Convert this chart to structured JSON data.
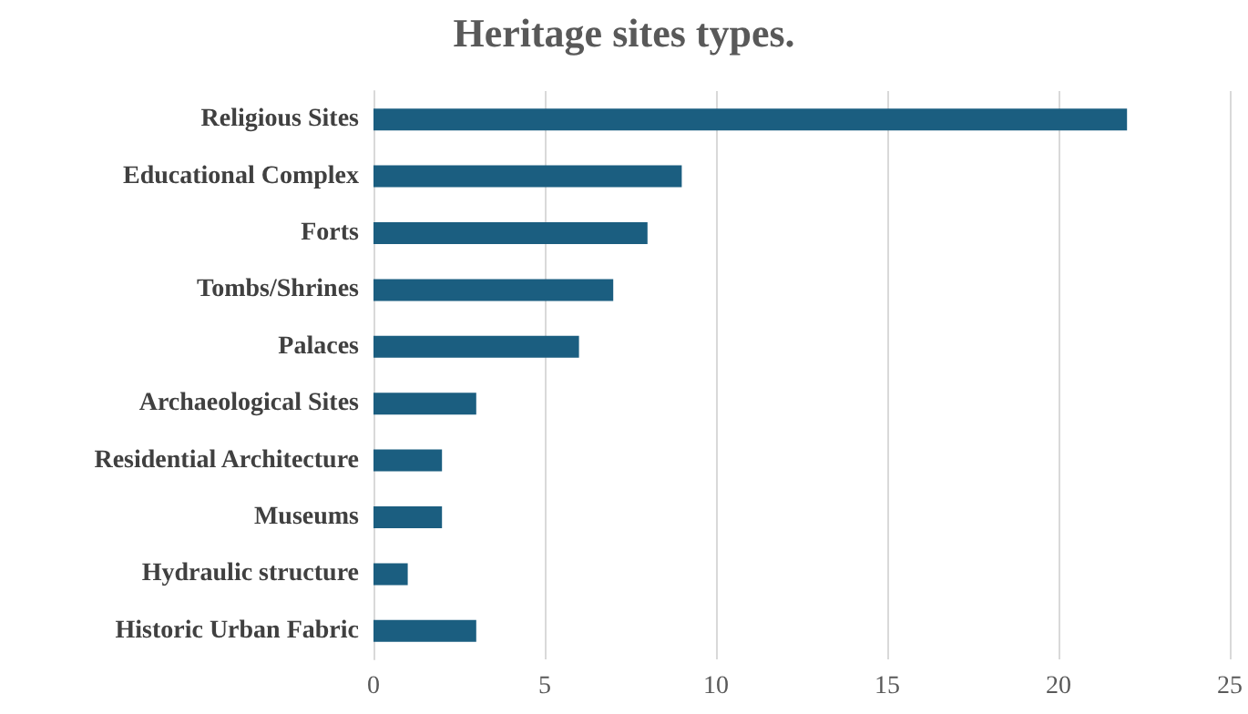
{
  "chart_data": {
    "type": "bar",
    "orientation": "horizontal",
    "title": "Heritage sites types.",
    "categories": [
      "Religious Sites",
      "Educational Complex",
      "Forts",
      "Tombs/Shrines",
      "Palaces",
      "Archaeological Sites",
      "Residential Architecture",
      "Museums",
      "Hydraulic structure",
      "Historic Urban Fabric"
    ],
    "values": [
      22,
      9,
      8,
      7,
      6,
      3,
      2,
      2,
      1,
      3
    ],
    "color": "#1b5e80",
    "xlim": [
      0,
      25
    ],
    "xticks": [
      0,
      5,
      10,
      15,
      20,
      25
    ],
    "grid": "x"
  }
}
